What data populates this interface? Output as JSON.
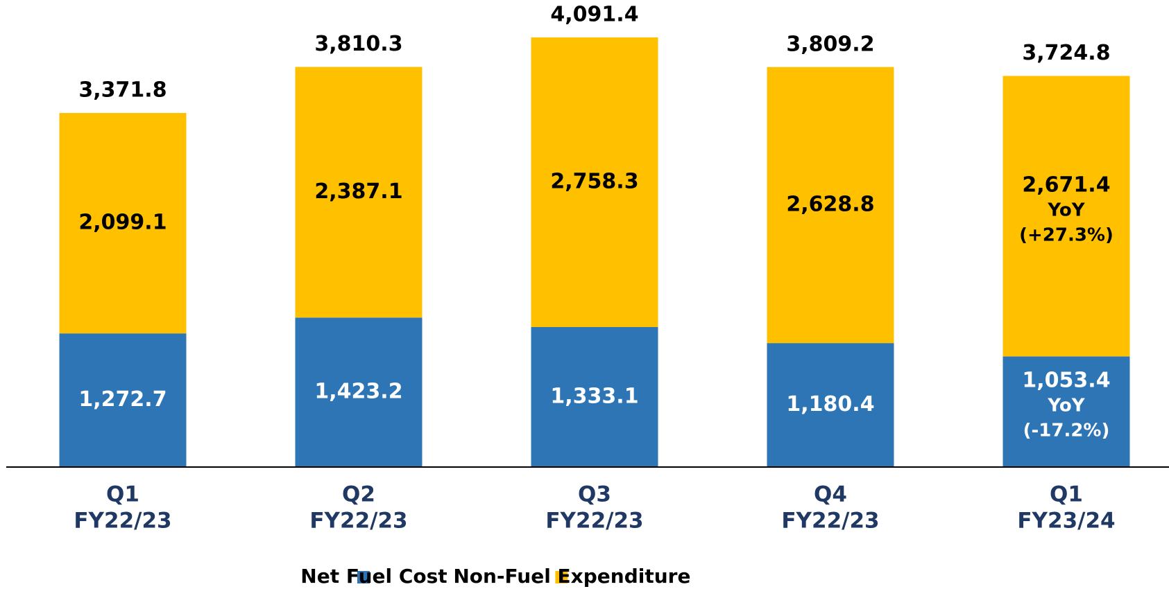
{
  "chart_data": {
    "type": "stacked_bar",
    "categories": [
      [
        "Q1",
        "FY22/23"
      ],
      [
        "Q2",
        "FY22/23"
      ],
      [
        "Q3",
        "FY22/23"
      ],
      [
        "Q4",
        "FY22/23"
      ],
      [
        "Q1",
        "FY23/24"
      ]
    ],
    "series": [
      {
        "name": "Net Fuel Cost",
        "color": "#2E75B6",
        "values": [
          1272.7,
          1423.2,
          1333.1,
          1180.4,
          1053.4
        ],
        "value_labels": [
          "1,272.7",
          "1,423.2",
          "1,333.1",
          "1,180.4",
          "1,053.4"
        ],
        "notes": [
          null,
          null,
          null,
          null,
          [
            "YoY",
            "(-17.2%)"
          ]
        ]
      },
      {
        "name": "Non-Fuel Expenditure",
        "color": "#FFC000",
        "values": [
          2099.1,
          2387.1,
          2758.3,
          2628.8,
          2671.4
        ],
        "value_labels": [
          "2,099.1",
          "2,387.1",
          "2,758.3",
          "2,628.8",
          "2,671.4"
        ],
        "notes": [
          null,
          null,
          null,
          null,
          [
            "YoY",
            "(+27.3%)"
          ]
        ]
      }
    ],
    "totals": [
      3371.8,
      3810.3,
      4091.4,
      3809.2,
      3724.8
    ],
    "total_labels": [
      "3,371.8",
      "3,810.3",
      "4,091.4",
      "3,809.2",
      "3,724.8"
    ],
    "legend": "bottom"
  }
}
